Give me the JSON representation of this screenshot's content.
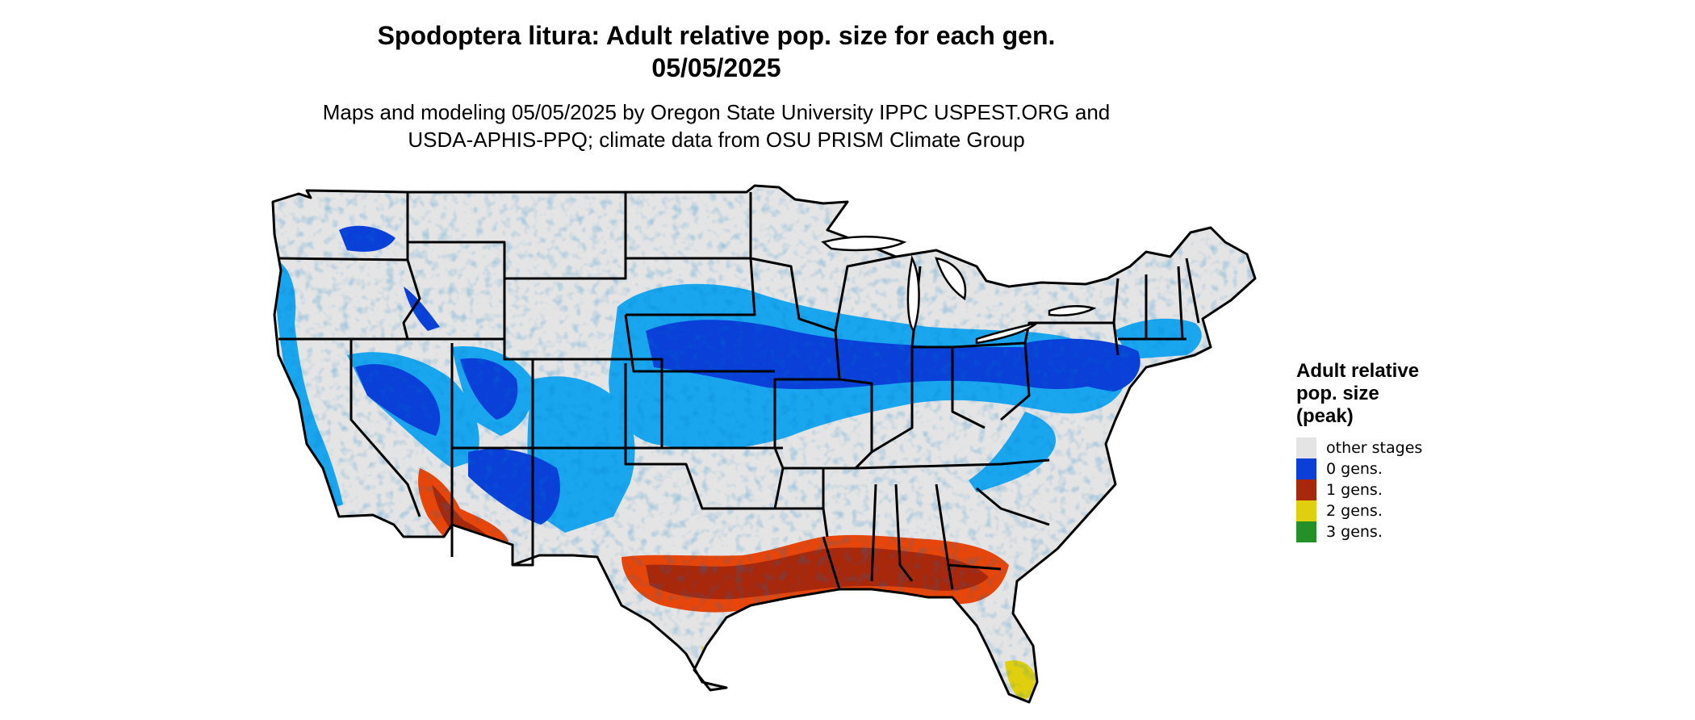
{
  "title": {
    "line1": "Spodoptera litura: Adult relative pop. size for each gen.",
    "line2": "05/05/2025"
  },
  "subtitle": {
    "line1": "Maps and modeling 05/05/2025 by Oregon State University IPPC USPEST.ORG and",
    "line2": "USDA-APHIS-PPQ; climate data from OSU PRISM Climate Group"
  },
  "colors": {
    "background_land": "#e4e4e4",
    "border": "#000000",
    "zero_gens_dark": "#0a3fd8",
    "zero_gens_light": "#1aa6ee",
    "one_gen_dark": "#a8280c",
    "one_gen_light": "#e6460a",
    "two_gens": "#e0cf0e",
    "three_gens": "#249028"
  },
  "legend": {
    "title_lines": [
      "Adult relative",
      "pop. size",
      "(peak)"
    ],
    "items": [
      {
        "label": "other stages",
        "color": "#e4e4e4",
        "icon": "swatch"
      },
      {
        "label": "0 gens.",
        "color": "#0a3fd8",
        "icon": "swatch"
      },
      {
        "label": "1 gens.",
        "color": "#a8280c",
        "icon": "swatch"
      },
      {
        "label": "2 gens.",
        "color": "#e0cf0e",
        "icon": "swatch"
      },
      {
        "label": "3 gens.",
        "color": "#249028",
        "icon": "swatch"
      }
    ]
  }
}
